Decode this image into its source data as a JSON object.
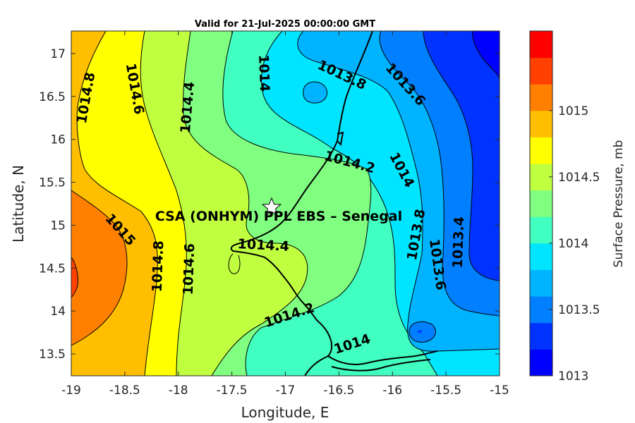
{
  "title": "Valid for 21-Jul-2025 00:00:00 GMT",
  "site_label": "CSA (ONHYM) PPL EBS  – Senegal",
  "colorbar": {
    "label": "Surface Pressure, mb",
    "tick_labels": [
      "1013",
      "1013.5",
      "1014",
      "1014.5",
      "1015"
    ],
    "levels": [
      1013,
      1013.2,
      1013.4,
      1013.6,
      1013.8,
      1014,
      1014.2,
      1014.4,
      1014.6,
      1014.8,
      1015,
      1015.2,
      1015.4
    ],
    "colors": [
      "#0000FF",
      "#0033FF",
      "#0080FF",
      "#00B3FF",
      "#00E5FF",
      "#40FFC0",
      "#80FF80",
      "#C0FF40",
      "#FFFF00",
      "#FFBF00",
      "#FF8000",
      "#FF4000",
      "#FF0000"
    ]
  },
  "map": {
    "xlabel": "Longitude, E",
    "ylabel": "Latitude, N",
    "x_ticks": [
      "-19",
      "-18.5",
      "-18",
      "-17.5",
      "-17",
      "-16.5",
      "-16",
      "-15.5",
      "-15"
    ],
    "y_ticks": [
      "13.5",
      "14",
      "14.5",
      "15",
      "15.5",
      "16",
      "16.5",
      "17"
    ],
    "site_marker": "star-icon",
    "contour_labels": [
      {
        "text": "1014.8"
      },
      {
        "text": "1014.6"
      },
      {
        "text": "1014.4"
      },
      {
        "text": "1014"
      },
      {
        "text": "1013.8"
      },
      {
        "text": "1013.6"
      },
      {
        "text": "1014.2"
      },
      {
        "text": "1014"
      },
      {
        "text": "1015"
      },
      {
        "text": "1014.4"
      },
      {
        "text": "1014.8"
      },
      {
        "text": "1014.6"
      },
      {
        "text": "1013.8"
      },
      {
        "text": "1013.6"
      },
      {
        "text": "1013.4"
      },
      {
        "text": "1014.2"
      },
      {
        "text": "1014"
      }
    ]
  }
}
